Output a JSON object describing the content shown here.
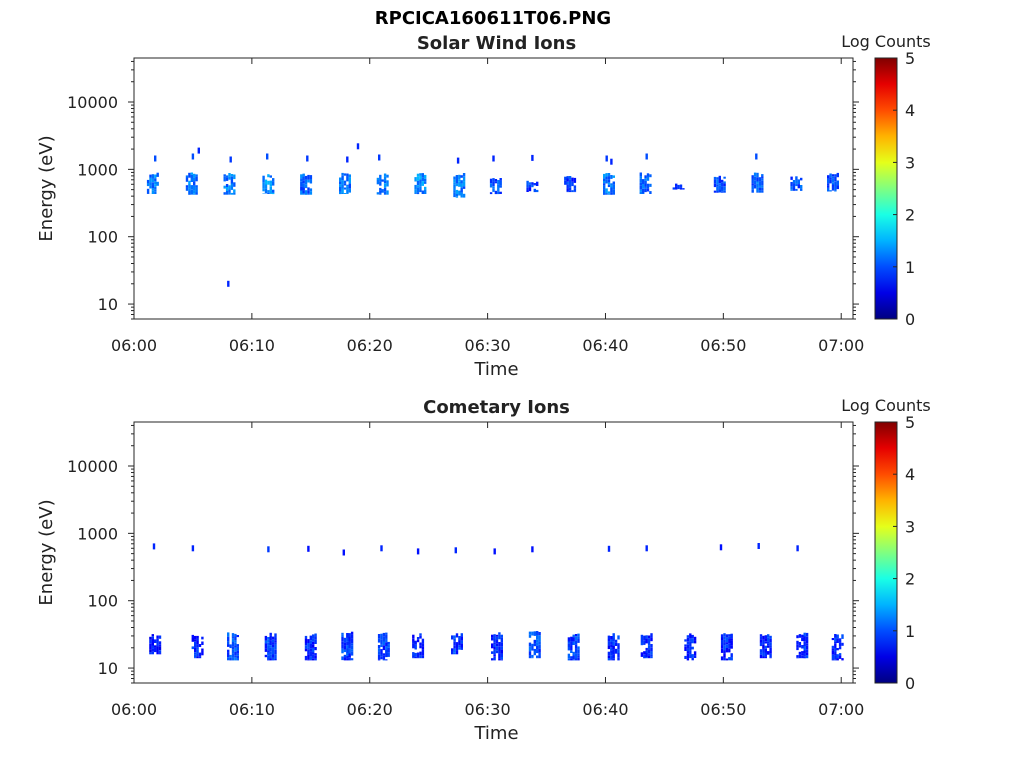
{
  "figure": {
    "filename": "RPCICA160611T06.PNG"
  },
  "chart_data": [
    {
      "type": "heatmap",
      "title": "Solar Wind Ions",
      "xlabel": "Time",
      "ylabel": "Energy (eV)",
      "x_range": [
        "06:00",
        "07:01"
      ],
      "y_scale": "log",
      "y_range": [
        6,
        45000
      ],
      "x_ticks": [
        "06:00",
        "06:10",
        "06:20",
        "06:30",
        "06:40",
        "06:50",
        "07:00"
      ],
      "y_ticks": [
        "10",
        "100",
        "1000",
        "10000"
      ],
      "colorbar": {
        "label": "Log Counts",
        "min": 0,
        "max": 5,
        "ticks": [
          "0",
          "1",
          "2",
          "3",
          "4",
          "5"
        ],
        "colormap": "jet"
      },
      "bursts": [
        {
          "t": "06:01.6",
          "e_low": 430,
          "e_high": 900,
          "level": 1.2
        },
        {
          "t": "06:04.9",
          "e_low": 420,
          "e_high": 900,
          "level": 1.2
        },
        {
          "t": "06:08.1",
          "e_low": 420,
          "e_high": 900,
          "level": 1.2
        },
        {
          "t": "06:11.4",
          "e_low": 430,
          "e_high": 900,
          "level": 1.3
        },
        {
          "t": "06:14.6",
          "e_low": 420,
          "e_high": 880,
          "level": 1.1
        },
        {
          "t": "06:17.9",
          "e_low": 430,
          "e_high": 900,
          "level": 1.2
        },
        {
          "t": "06:21.1",
          "e_low": 420,
          "e_high": 880,
          "level": 1.2
        },
        {
          "t": "06:24.3",
          "e_low": 430,
          "e_high": 900,
          "level": 1.3
        },
        {
          "t": "06:27.6",
          "e_low": 380,
          "e_high": 900,
          "level": 1.2
        },
        {
          "t": "06:30.7",
          "e_low": 430,
          "e_high": 750,
          "level": 1.0
        },
        {
          "t": "06:33.8",
          "e_low": 460,
          "e_high": 700,
          "level": 0.9
        },
        {
          "t": "06:37.0",
          "e_low": 460,
          "e_high": 800,
          "level": 0.9
        },
        {
          "t": "06:40.3",
          "e_low": 420,
          "e_high": 900,
          "level": 1.2
        },
        {
          "t": "06:43.4",
          "e_low": 430,
          "e_high": 900,
          "level": 1.1
        },
        {
          "t": "06:46.2",
          "e_low": 500,
          "e_high": 620,
          "level": 0.9
        },
        {
          "t": "06:49.7",
          "e_low": 450,
          "e_high": 850,
          "level": 1.0
        },
        {
          "t": "06:52.9",
          "e_low": 450,
          "e_high": 900,
          "level": 1.1
        },
        {
          "t": "06:56.2",
          "e_low": 480,
          "e_high": 850,
          "level": 1.0
        },
        {
          "t": "06:59.3",
          "e_low": 470,
          "e_high": 900,
          "level": 1.0
        }
      ],
      "isolated_points": [
        {
          "t": "06:01.8",
          "e": 1450,
          "level": 1.0
        },
        {
          "t": "06:05.0",
          "e": 1550,
          "level": 1.0
        },
        {
          "t": "06:05.5",
          "e": 1900,
          "level": 0.8
        },
        {
          "t": "06:08.2",
          "e": 1400,
          "level": 0.9
        },
        {
          "t": "06:08.0",
          "e": 20,
          "level": 0.8
        },
        {
          "t": "06:11.3",
          "e": 1550,
          "level": 1.0
        },
        {
          "t": "06:14.7",
          "e": 1450,
          "level": 0.9
        },
        {
          "t": "06:18.1",
          "e": 1400,
          "level": 0.8
        },
        {
          "t": "06:19.0",
          "e": 2200,
          "level": 0.8
        },
        {
          "t": "06:20.8",
          "e": 1500,
          "level": 0.9
        },
        {
          "t": "06:27.5",
          "e": 1350,
          "level": 0.8
        },
        {
          "t": "06:30.5",
          "e": 1450,
          "level": 0.8
        },
        {
          "t": "06:33.8",
          "e": 1480,
          "level": 0.8
        },
        {
          "t": "06:40.1",
          "e": 1450,
          "level": 0.9
        },
        {
          "t": "06:40.5",
          "e": 1300,
          "level": 0.8
        },
        {
          "t": "06:43.5",
          "e": 1550,
          "level": 1.0
        },
        {
          "t": "06:52.8",
          "e": 1550,
          "level": 1.0
        }
      ]
    },
    {
      "type": "heatmap",
      "title": "Cometary Ions",
      "xlabel": "Time",
      "ylabel": "Energy (eV)",
      "x_range": [
        "06:00",
        "07:01"
      ],
      "y_scale": "log",
      "y_range": [
        6,
        45000
      ],
      "x_ticks": [
        "06:00",
        "06:10",
        "06:20",
        "06:30",
        "06:40",
        "06:50",
        "07:00"
      ],
      "y_ticks": [
        "10",
        "100",
        "1000",
        "10000"
      ],
      "colorbar": {
        "label": "Log Counts",
        "min": 0,
        "max": 5,
        "ticks": [
          "0",
          "1",
          "2",
          "3",
          "4",
          "5"
        ],
        "colormap": "jet"
      },
      "bursts": [
        {
          "t": "06:01.8",
          "e_low": 16,
          "e_high": 32,
          "level": 0.7
        },
        {
          "t": "06:05.4",
          "e_low": 14,
          "e_high": 32,
          "level": 0.8
        },
        {
          "t": "06:08.4",
          "e_low": 13,
          "e_high": 34,
          "level": 1.0
        },
        {
          "t": "06:11.6",
          "e_low": 13,
          "e_high": 34,
          "level": 0.9
        },
        {
          "t": "06:15.0",
          "e_low": 13,
          "e_high": 33,
          "level": 0.8
        },
        {
          "t": "06:18.1",
          "e_low": 13,
          "e_high": 36,
          "level": 0.9
        },
        {
          "t": "06:21.2",
          "e_low": 13,
          "e_high": 34,
          "level": 0.9
        },
        {
          "t": "06:24.1",
          "e_low": 14,
          "e_high": 34,
          "level": 0.8
        },
        {
          "t": "06:27.4",
          "e_low": 16,
          "e_high": 33,
          "level": 0.9
        },
        {
          "t": "06:30.8",
          "e_low": 13,
          "e_high": 34,
          "level": 0.8
        },
        {
          "t": "06:34.0",
          "e_low": 14,
          "e_high": 36,
          "level": 1.0
        },
        {
          "t": "06:37.3",
          "e_low": 13,
          "e_high": 34,
          "level": 0.9
        },
        {
          "t": "06:40.7",
          "e_low": 13,
          "e_high": 33,
          "level": 0.8
        },
        {
          "t": "06:43.5",
          "e_low": 14,
          "e_high": 33,
          "level": 0.8
        },
        {
          "t": "06:47.2",
          "e_low": 13,
          "e_high": 33,
          "level": 0.8
        },
        {
          "t": "06:50.3",
          "e_low": 13,
          "e_high": 33,
          "level": 0.8
        },
        {
          "t": "06:53.6",
          "e_low": 14,
          "e_high": 33,
          "level": 0.8
        },
        {
          "t": "06:56.7",
          "e_low": 14,
          "e_high": 34,
          "level": 0.8
        },
        {
          "t": "06:59.7",
          "e_low": 13,
          "e_high": 33,
          "level": 0.8
        }
      ],
      "isolated_points": [
        {
          "t": "06:01.7",
          "e": 640,
          "level": 0.8
        },
        {
          "t": "06:05.0",
          "e": 600,
          "level": 0.8
        },
        {
          "t": "06:11.4",
          "e": 580,
          "level": 0.9
        },
        {
          "t": "06:14.8",
          "e": 590,
          "level": 0.7
        },
        {
          "t": "06:17.8",
          "e": 520,
          "level": 0.7
        },
        {
          "t": "06:21.0",
          "e": 600,
          "level": 0.8
        },
        {
          "t": "06:24.1",
          "e": 540,
          "level": 0.7
        },
        {
          "t": "06:27.3",
          "e": 560,
          "level": 0.8
        },
        {
          "t": "06:30.6",
          "e": 540,
          "level": 0.7
        },
        {
          "t": "06:33.8",
          "e": 580,
          "level": 0.7
        },
        {
          "t": "06:40.3",
          "e": 590,
          "level": 0.8
        },
        {
          "t": "06:43.5",
          "e": 600,
          "level": 0.8
        },
        {
          "t": "06:49.8",
          "e": 620,
          "level": 0.7
        },
        {
          "t": "06:53.0",
          "e": 650,
          "level": 0.8
        },
        {
          "t": "06:56.3",
          "e": 600,
          "level": 0.8
        }
      ]
    }
  ]
}
